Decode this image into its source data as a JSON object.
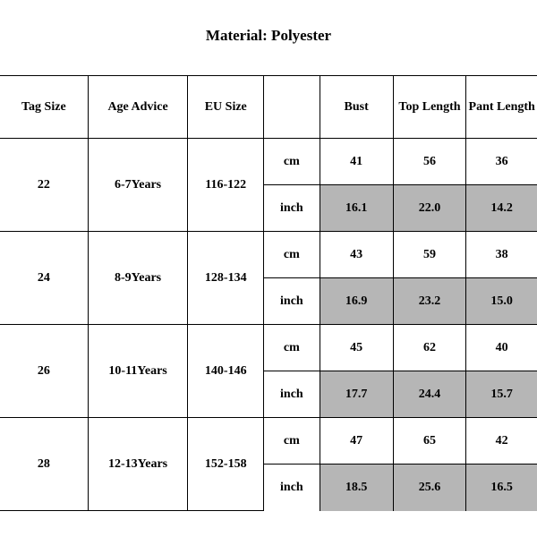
{
  "title": "Material: Polyester",
  "table": {
    "columns": [
      "Tag Size",
      "Age Advice",
      "EU Size",
      "",
      "Bust",
      "Top Length",
      "Pant Length"
    ],
    "unit_labels": {
      "cm": "cm",
      "inch": "inch"
    },
    "rows": [
      {
        "tag": "22",
        "age": "6-7Years",
        "eu": "116-122",
        "cm": {
          "bust": "41",
          "top": "56",
          "pant": "36"
        },
        "inch": {
          "bust": "16.1",
          "top": "22.0",
          "pant": "14.2"
        }
      },
      {
        "tag": "24",
        "age": "8-9Years",
        "eu": "128-134",
        "cm": {
          "bust": "43",
          "top": "59",
          "pant": "38"
        },
        "inch": {
          "bust": "16.9",
          "top": "23.2",
          "pant": "15.0"
        }
      },
      {
        "tag": "26",
        "age": "10-11Years",
        "eu": "140-146",
        "cm": {
          "bust": "45",
          "top": "62",
          "pant": "40"
        },
        "inch": {
          "bust": "17.7",
          "top": "24.4",
          "pant": "15.7"
        }
      },
      {
        "tag": "28",
        "age": "12-13Years",
        "eu": "152-158",
        "cm": {
          "bust": "47",
          "top": "65",
          "pant": "42"
        },
        "inch": {
          "bust": "18.5",
          "top": "25.6",
          "pant": "16.5"
        }
      }
    ],
    "colors": {
      "background": "#ffffff",
      "border": "#000000",
      "shade": "#b6b6b6",
      "text": "#000000"
    },
    "font_family": "Times New Roman",
    "title_fontsize_pt": 13,
    "cell_fontsize_pt": 10.5
  }
}
